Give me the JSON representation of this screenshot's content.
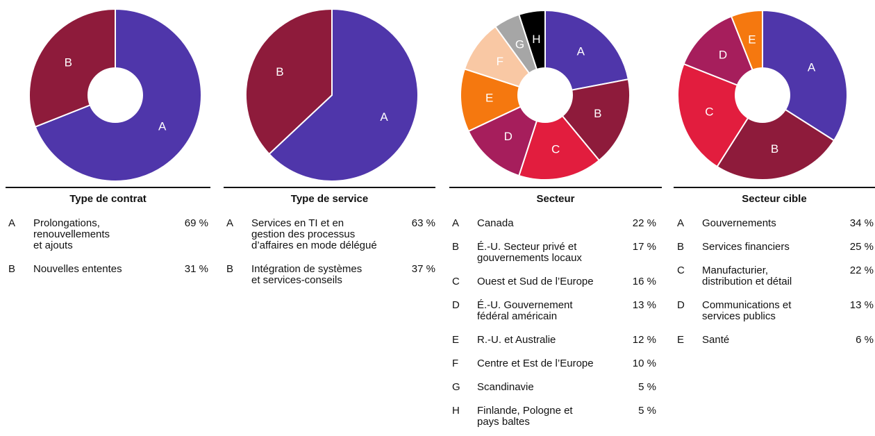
{
  "chart_data": [
    {
      "type": "pie",
      "hole": true,
      "title": "Type de contrat",
      "slice_labels": [
        "A",
        "B"
      ],
      "categories": [
        [
          "Prolongations,",
          "renouvellements",
          "et ajouts"
        ],
        [
          "Nouvelles ententes"
        ]
      ],
      "values": [
        69,
        31
      ],
      "value_labels": [
        "69 %",
        "31 %"
      ],
      "colors": [
        "#4f36aa",
        "#8e1b3b"
      ]
    },
    {
      "type": "pie",
      "hole": false,
      "title": "Type de service",
      "slice_labels": [
        "A",
        "B"
      ],
      "categories": [
        [
          "Services en TI et en",
          "gestion des processus",
          "d’affaires en mode délégué"
        ],
        [
          "Intégration de systèmes",
          "et services-conseils"
        ]
      ],
      "values": [
        63,
        37
      ],
      "value_labels": [
        "63 %",
        "37 %"
      ],
      "colors": [
        "#4f36aa",
        "#8e1b3b"
      ]
    },
    {
      "type": "pie",
      "hole": true,
      "title": "Secteur",
      "slice_labels": [
        "A",
        "B",
        "C",
        "D",
        "E",
        "F",
        "G",
        "H"
      ],
      "categories": [
        [
          "Canada"
        ],
        [
          "É.-U. Secteur privé et",
          "gouvernements locaux"
        ],
        [
          "Ouest et Sud de l’Europe"
        ],
        [
          "É.-U. Gouvernement",
          "fédéral américain"
        ],
        [
          "R.-U. et Australie"
        ],
        [
          "Centre et Est de l’Europe"
        ],
        [
          "Scandinavie"
        ],
        [
          "Finlande, Pologne et",
          "pays baltes"
        ]
      ],
      "values": [
        22,
        17,
        16,
        13,
        12,
        10,
        5,
        5
      ],
      "value_labels": [
        "22 %",
        "17 %",
        "16 %",
        "13 %",
        "12 %",
        "10 %",
        "5 %",
        "5 %"
      ],
      "colors": [
        "#4f36aa",
        "#8e1b3b",
        "#e21d3e",
        "#a61e5c",
        "#f5780f",
        "#f9c8a4",
        "#a6a6a6",
        "#000000"
      ]
    },
    {
      "type": "pie",
      "hole": true,
      "title": "Secteur cible",
      "slice_labels": [
        "A",
        "B",
        "C",
        "D",
        "E"
      ],
      "categories": [
        [
          "Gouvernements"
        ],
        [
          "Services financiers"
        ],
        [
          "Manufacturier,",
          "distribution et détail"
        ],
        [
          "Communications et",
          "services publics"
        ],
        [
          "Santé"
        ]
      ],
      "values": [
        34,
        25,
        22,
        13,
        6
      ],
      "value_labels": [
        "34 %",
        "25 %",
        "22 %",
        "13 %",
        "6 %"
      ],
      "colors": [
        "#4f36aa",
        "#8e1b3b",
        "#e21d3e",
        "#a61e5c",
        "#f5780f"
      ]
    }
  ]
}
